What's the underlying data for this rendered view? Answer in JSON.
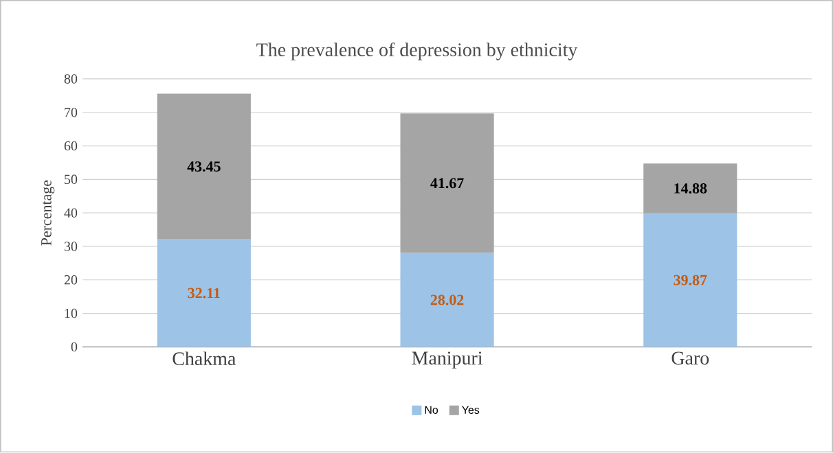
{
  "chart_data": {
    "type": "bar",
    "stacked": true,
    "title": "The prevalence of depression by ethnicity",
    "ylabel": "Percentage",
    "categories": [
      "Chakma",
      "Manipuri",
      "Garo"
    ],
    "series": [
      {
        "name": "No",
        "color": "#9dc3e6",
        "values": [
          32.11,
          28.02,
          39.87
        ]
      },
      {
        "name": "Yes",
        "color": "#a5a5a5",
        "values": [
          43.45,
          41.67,
          14.88
        ]
      }
    ],
    "ylim": [
      0,
      80
    ],
    "yticks": [
      0,
      10,
      20,
      30,
      40,
      50,
      60,
      70,
      80
    ],
    "grid": "y",
    "legend": "bottom",
    "data_labels": true
  }
}
